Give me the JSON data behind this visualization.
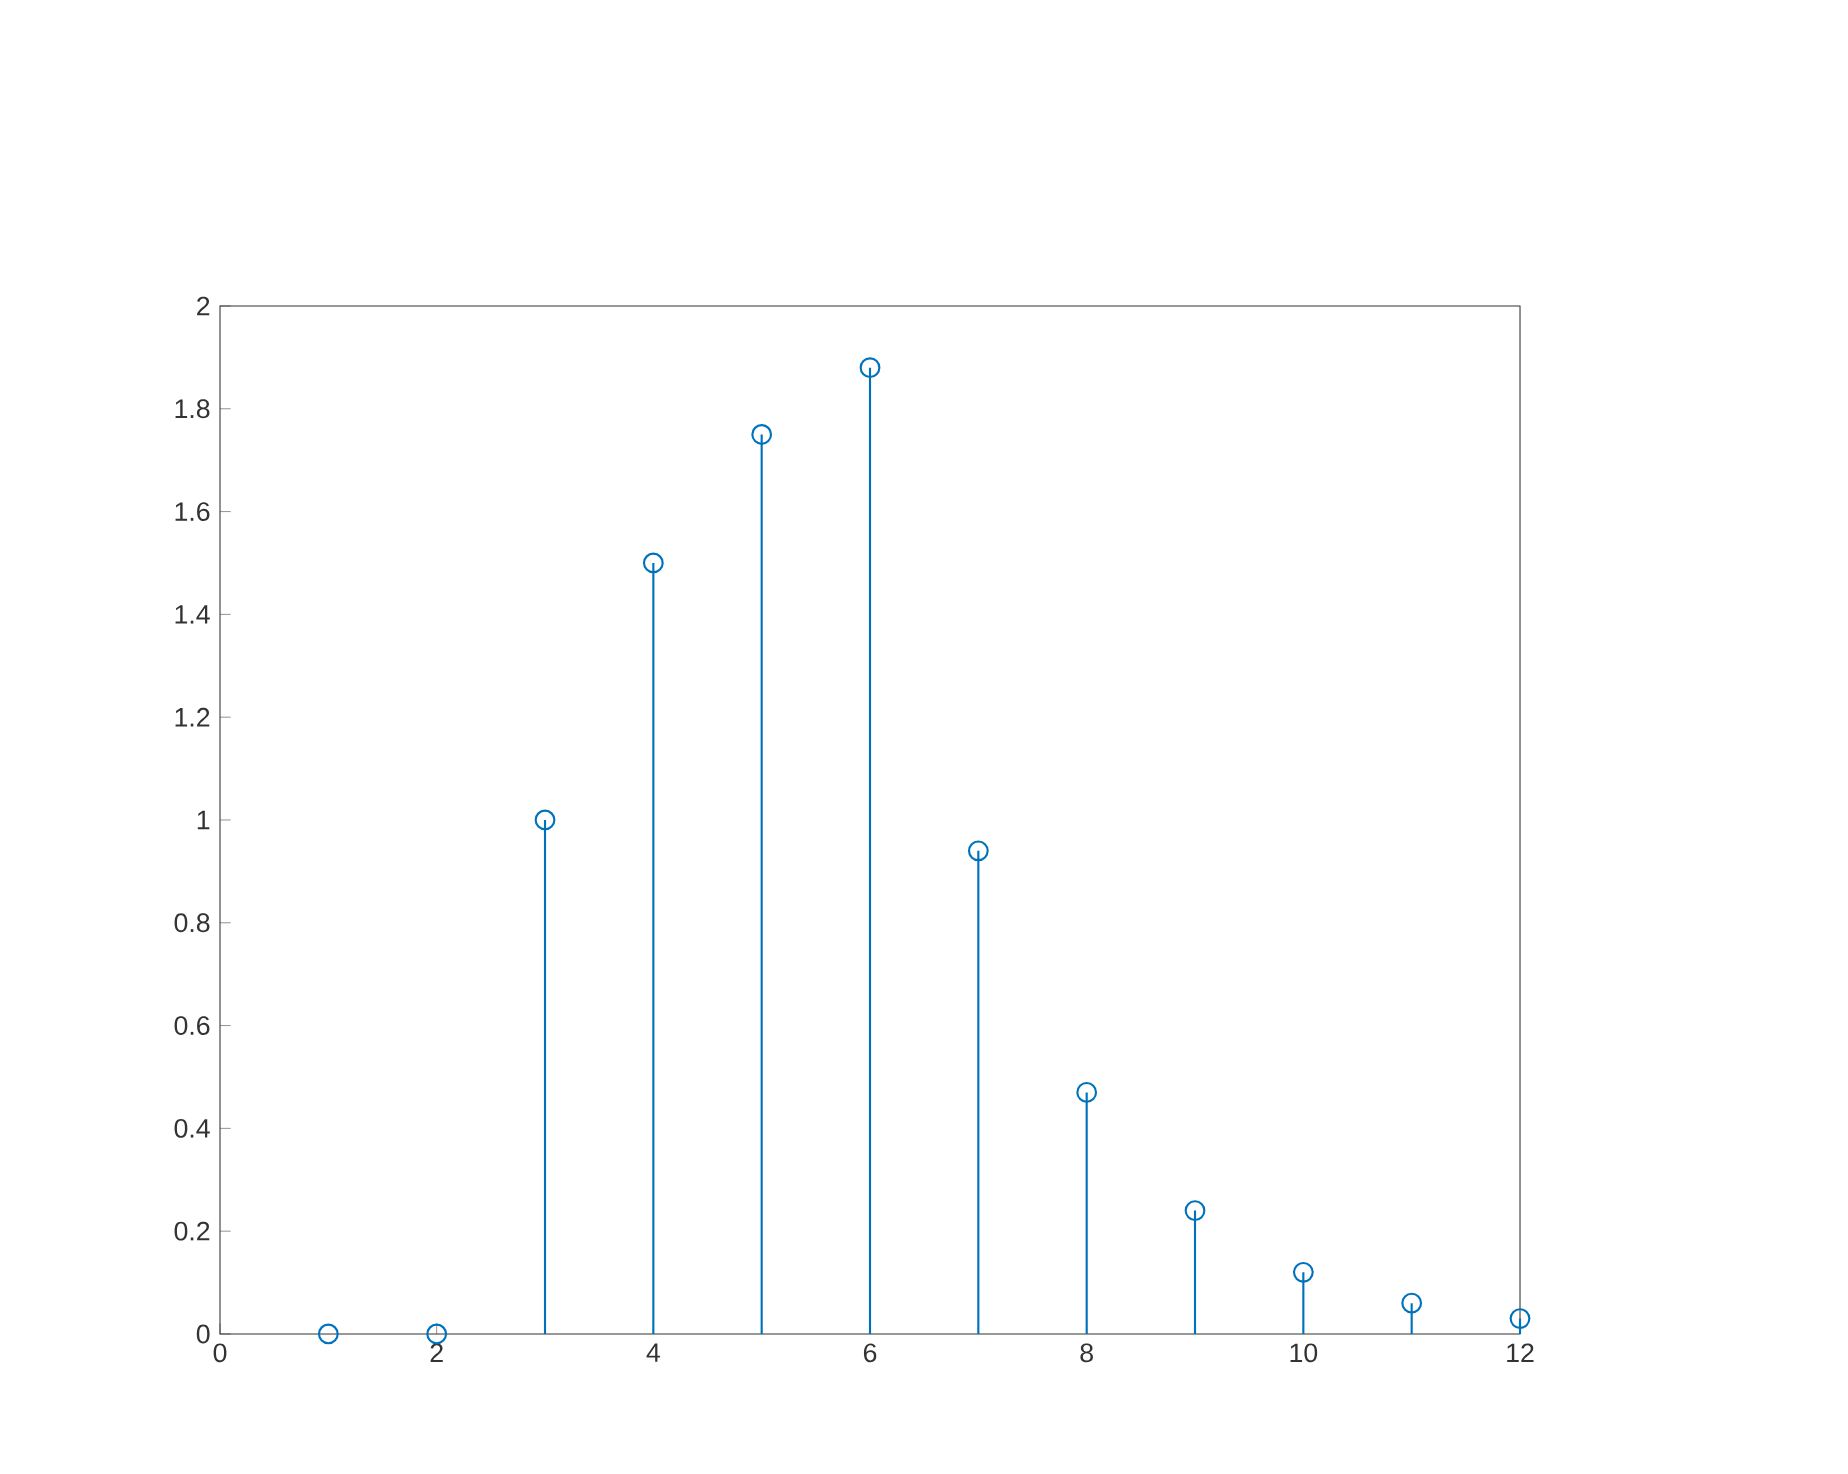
{
  "chart_data": {
    "type": "lollipop",
    "x": [
      1,
      2,
      3,
      4,
      5,
      6,
      7,
      8,
      9,
      10,
      11,
      12
    ],
    "values": [
      0,
      0,
      1,
      1.5,
      1.75,
      1.88,
      0.94,
      0.47,
      0.24,
      0.12,
      0.06,
      0.03
    ],
    "color": "#0072bd",
    "marker": "circle",
    "xlim": [
      0,
      12
    ],
    "xticks": [
      0,
      2,
      4,
      6,
      8,
      10,
      12
    ],
    "ylim": [
      0,
      2
    ],
    "yticks": [
      0,
      0.2,
      0.4,
      0.6,
      0.8,
      1,
      1.2,
      1.4,
      1.6,
      1.8,
      2
    ]
  }
}
